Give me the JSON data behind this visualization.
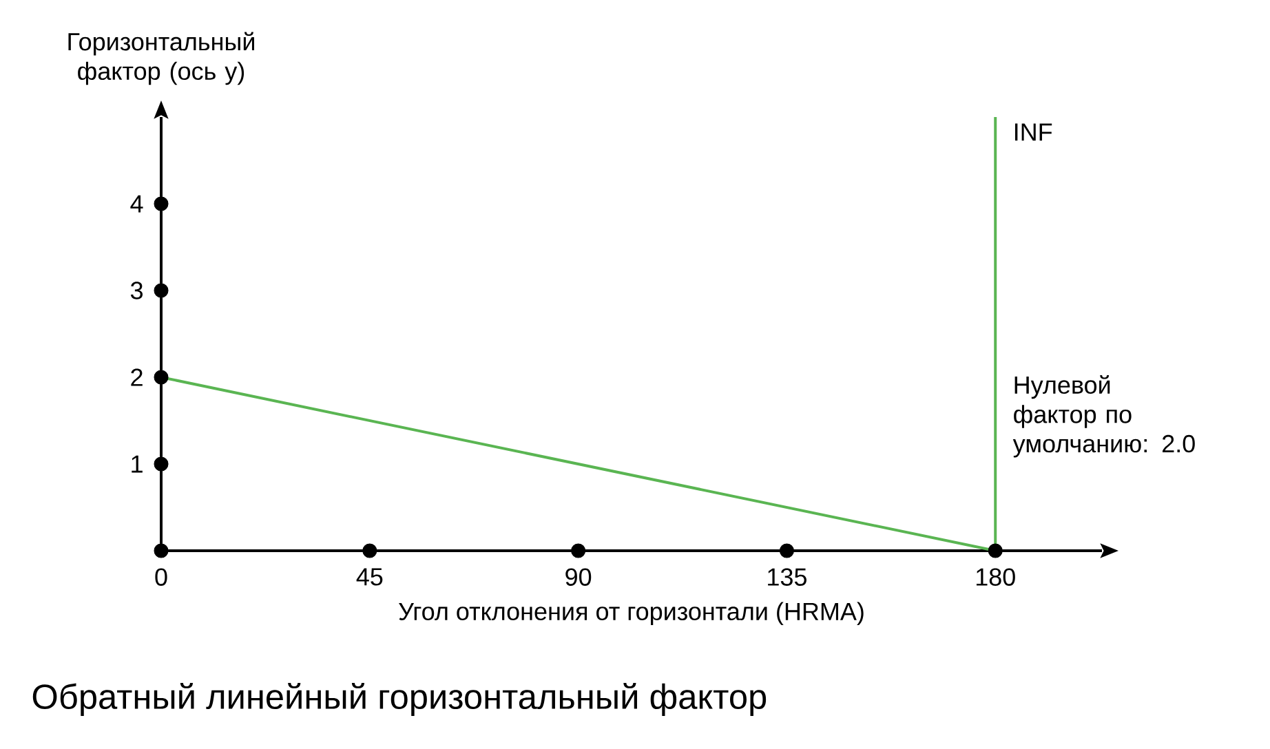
{
  "chart_data": {
    "type": "line",
    "title": "Обратный линейный горизонтальный фактор",
    "xlabel": "Угол отклонения от горизонтали (HRMA)",
    "ylabel": "Горизонтальный фактор (ось y)",
    "xlim": [
      0,
      203
    ],
    "ylim": [
      0,
      5
    ],
    "xticks": [
      0,
      45,
      90,
      135,
      180
    ],
    "yticks": [
      1,
      2,
      3,
      4
    ],
    "grid": false,
    "series": [
      {
        "color": "#5ab552",
        "x": [
          0,
          180
        ],
        "values": [
          2,
          0
        ]
      },
      {
        "type": "scatter",
        "color": "#000000",
        "marker": "circle",
        "x": [
          0,
          45,
          90,
          135,
          180,
          0,
          0,
          0,
          0
        ],
        "values": [
          0,
          0,
          0,
          0,
          0,
          1,
          2,
          3,
          4
        ]
      }
    ],
    "ref_lines": [
      {
        "axis": "x",
        "value": 180,
        "color": "#5ab552",
        "label": "INF"
      }
    ],
    "annotations": [
      "Нулевой фактор по умолчанию: 2.0"
    ]
  }
}
